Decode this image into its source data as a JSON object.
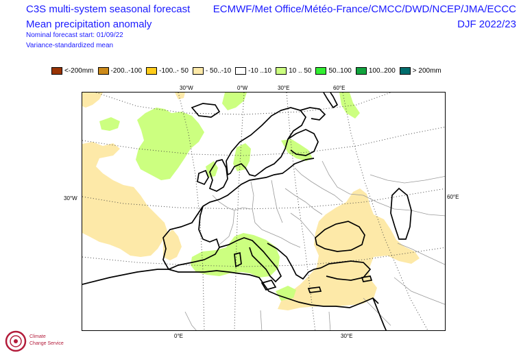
{
  "header": {
    "left_title": "C3S multi-system seasonal forecast",
    "left_subtitle": "Mean precipitation anomaly",
    "left_line3": "Nominal forecast start: 01/09/22",
    "left_line4": "Variance-standardized mean",
    "right_title": "ECMWF/Met Office/Météo-France/CMCC/DWD/NCEP/JMA/ECCC",
    "right_subtitle": "DJF 2022/23"
  },
  "legend": [
    {
      "label": "<-200mm",
      "color": "#993404"
    },
    {
      "label": "-200..-100",
      "color": "#cc8a1a"
    },
    {
      "label": "-100..- 50",
      "color": "#ffcc1a"
    },
    {
      "label": "- 50..-10",
      "color": "#fde9a8"
    },
    {
      "label": "-10 ..10",
      "color": "#ffffff"
    },
    {
      "label": "10 .. 50",
      "color": "#ccff80"
    },
    {
      "label": "50..100",
      "color": "#33ee33"
    },
    {
      "label": "100..200",
      "color": "#11a33d"
    },
    {
      "label": "> 200mm",
      "color": "#006d6d"
    }
  ],
  "map_labels": {
    "lon_30w_top": "30°W",
    "lon_0_top": "0°W",
    "lon_30e_top": "30°E",
    "lon_60e_top": "60°E",
    "lat_30w_left": "30°W",
    "lat_60e_right": "60°E",
    "lon_0_bottom": "0°E",
    "lon_30e_bottom": "30°E"
  },
  "logo": {
    "line1": "Climate",
    "line2": "Change Service"
  }
}
